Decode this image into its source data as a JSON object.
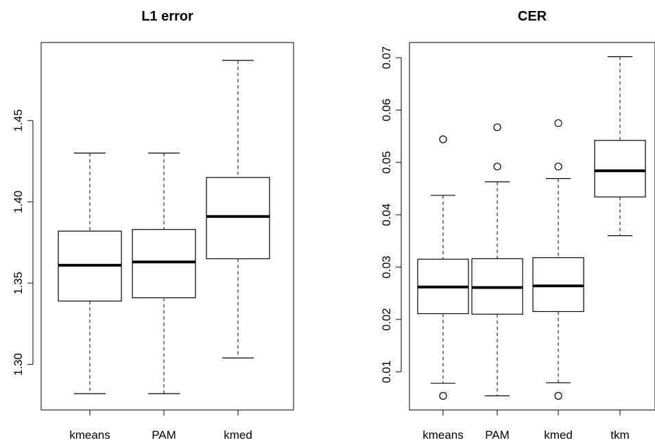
{
  "chart_data": [
    {
      "type": "boxplot",
      "title": "L1 error",
      "xlabel": "",
      "ylabel": "",
      "categories": [
        "kmeans",
        "PAM",
        "kmed"
      ],
      "ylim": [
        1.272,
        1.498
      ],
      "yticks": [
        1.3,
        1.35,
        1.4,
        1.45
      ],
      "ytick_labels": [
        "1.30",
        "1.35",
        "1.40",
        "1.45"
      ],
      "boxes": [
        {
          "label": "kmeans",
          "whisker_low": 1.282,
          "q1": 1.339,
          "median": 1.361,
          "q3": 1.382,
          "whisker_high": 1.43,
          "outliers": []
        },
        {
          "label": "PAM",
          "whisker_low": 1.282,
          "q1": 1.341,
          "median": 1.363,
          "q3": 1.383,
          "whisker_high": 1.43,
          "outliers": []
        },
        {
          "label": "kmed",
          "whisker_low": 1.304,
          "q1": 1.365,
          "median": 1.391,
          "q3": 1.415,
          "whisker_high": 1.487,
          "outliers": []
        }
      ]
    },
    {
      "type": "boxplot",
      "title": "CER",
      "xlabel": "",
      "ylabel": "",
      "categories": [
        "kmeans",
        "PAM",
        "kmed",
        "tkm"
      ],
      "ylim": [
        0.0027,
        0.0729
      ],
      "yticks": [
        0.01,
        0.02,
        0.03,
        0.04,
        0.05,
        0.06,
        0.07
      ],
      "ytick_labels": [
        "0.01",
        "0.02",
        "0.03",
        "0.04",
        "0.05",
        "0.06",
        "0.07"
      ],
      "boxes": [
        {
          "label": "kmeans",
          "whisker_low": 0.0078,
          "q1": 0.0211,
          "median": 0.0262,
          "q3": 0.0315,
          "whisker_high": 0.0437,
          "outliers": [
            0.0544,
            0.0054
          ]
        },
        {
          "label": "PAM",
          "whisker_low": 0.0054,
          "q1": 0.021,
          "median": 0.0261,
          "q3": 0.0316,
          "whisker_high": 0.0463,
          "outliers": [
            0.0567,
            0.0492
          ]
        },
        {
          "label": "kmed",
          "whisker_low": 0.0079,
          "q1": 0.0215,
          "median": 0.0264,
          "q3": 0.0318,
          "whisker_high": 0.0469,
          "outliers": [
            0.0575,
            0.0492,
            0.0054
          ]
        },
        {
          "label": "tkm",
          "whisker_low": 0.036,
          "q1": 0.0434,
          "median": 0.0484,
          "q3": 0.0542,
          "whisker_high": 0.0702,
          "outliers": []
        }
      ]
    }
  ],
  "style": {
    "box_fill": "#ffffff",
    "line_color": "#000000",
    "background": "#ffffff"
  }
}
